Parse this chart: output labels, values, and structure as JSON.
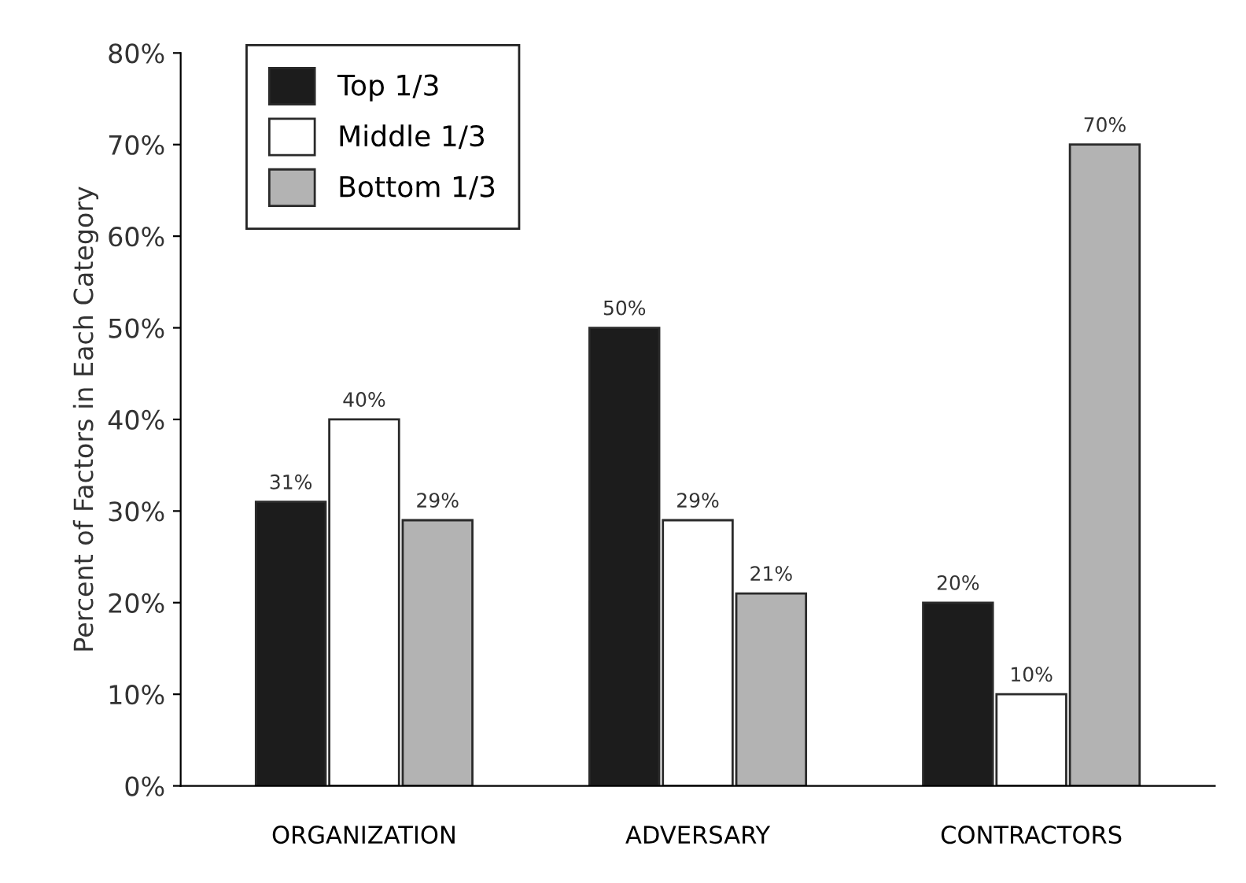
{
  "chart_data": {
    "type": "bar",
    "ylabel": "Percent of Factors in Each Category",
    "categories": [
      "ORGANIZATION",
      "ADVERSARY",
      "CONTRACTORS"
    ],
    "series": [
      {
        "name": "Top 1/3",
        "color": "#1c1c1c",
        "values": [
          31,
          50,
          20
        ],
        "value_labels": [
          "31%",
          "50%",
          "20%"
        ]
      },
      {
        "name": "Middle 1/3",
        "color": "#ffffff",
        "values": [
          40,
          29,
          10
        ],
        "value_labels": [
          "40%",
          "29%",
          "10%"
        ]
      },
      {
        "name": "Bottom 1/3",
        "color": "#b3b3b3",
        "values": [
          29,
          21,
          70
        ],
        "value_labels": [
          "29%",
          "21%",
          "70%"
        ]
      }
    ],
    "ylim": [
      0,
      80
    ],
    "yticks": [
      {
        "value": 0,
        "label": "0%"
      },
      {
        "value": 10,
        "label": "10%"
      },
      {
        "value": 20,
        "label": "20%"
      },
      {
        "value": 30,
        "label": "30%"
      },
      {
        "value": 40,
        "label": "40%"
      },
      {
        "value": 50,
        "label": "50%"
      },
      {
        "value": 60,
        "label": "60%"
      },
      {
        "value": 70,
        "label": "70%"
      },
      {
        "value": 80,
        "label": "80%"
      }
    ],
    "grid": false,
    "legend": "top left"
  }
}
